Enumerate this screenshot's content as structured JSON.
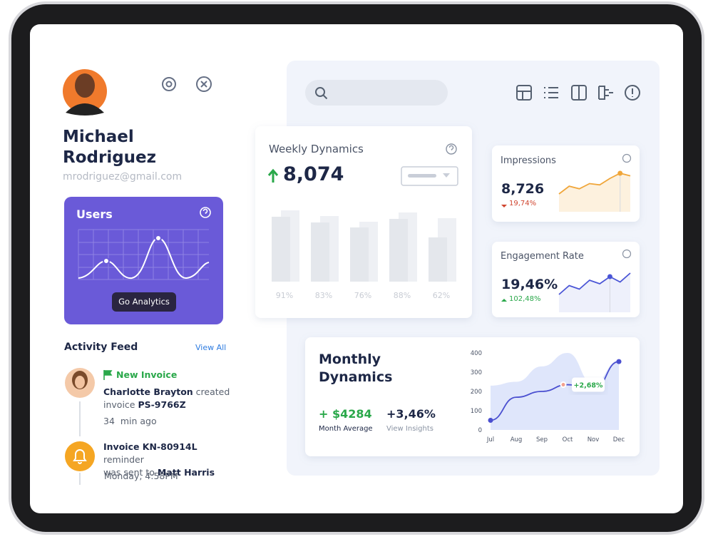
{
  "profile": {
    "first_name": "Michael",
    "last_name": "Rodriguez",
    "email": "mrodriguez@gmail.com"
  },
  "users_card": {
    "title": "Users",
    "button": "Go Analytics"
  },
  "activity_feed": {
    "title": "Activity Feed",
    "link": "View All",
    "items": [
      {
        "tag": "New Invoice",
        "parts": [
          "Charlotte Brayton",
          " created",
          "invoice ",
          "PS-9766Z"
        ],
        "time": "34  min ago"
      },
      {
        "parts": [
          "Invoice KN-80914L",
          " reminder",
          "was sent to ",
          "Matt Harris"
        ],
        "time": "Monday, 4:58PM"
      }
    ]
  },
  "weekly_dynamics": {
    "title": "Weekly Dynamics",
    "value": "8,074",
    "chart": {
      "type": "bar",
      "ylim": [
        0,
        100
      ],
      "series": [
        {
          "color": "#eef0f4",
          "values": [
            100,
            92,
            84,
            97,
            89
          ]
        },
        {
          "color": "#e4e7ec",
          "values": [
            91,
            83,
            76,
            88,
            62
          ],
          "value_labels": [
            "91%",
            "83%",
            "76%",
            "88%",
            "62%"
          ]
        }
      ]
    }
  },
  "impressions": {
    "title": "Impressions",
    "value": "8,726",
    "change": "19,74%",
    "chart": {
      "type": "line",
      "color": "#f0a63a",
      "values": [
        1,
        4,
        3,
        5,
        4.5,
        7,
        9,
        8
      ]
    }
  },
  "engagement_rate": {
    "title": "Engagement Rate",
    "value": "19,46%",
    "change": "102,48%",
    "chart": {
      "type": "line",
      "color": "#4a55d6",
      "values": [
        0,
        5,
        3,
        8,
        6,
        10,
        7,
        12
      ]
    }
  },
  "monthly_dynamics": {
    "title": "Monthly Dynamics",
    "stats": [
      {
        "value": "+ $4284",
        "label": "Month Average"
      },
      {
        "value": "+3,46%",
        "label": "View Insights"
      }
    ],
    "chart": {
      "type": "line",
      "categories": [
        "Jul",
        "Aug",
        "Sep",
        "Oct",
        "Nov",
        "Dec"
      ],
      "ylim": [
        0,
        400
      ],
      "yticks": [
        0,
        100,
        200,
        300,
        400
      ],
      "series": [
        {
          "color": "#dfe6fb",
          "values": [
            230,
            250,
            330,
            400,
            240,
            360
          ]
        },
        {
          "color": "#4a4fd0",
          "values": [
            50,
            170,
            200,
            235,
            205,
            355
          ]
        }
      ],
      "annotation": "+2,68%"
    }
  }
}
